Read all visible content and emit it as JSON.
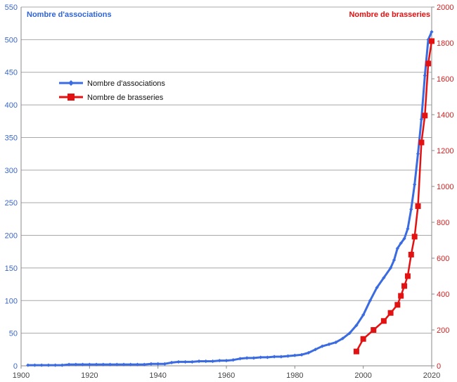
{
  "chart_data": {
    "type": "line",
    "title": "",
    "xlabel": "",
    "xlim": [
      1900,
      2020
    ],
    "x_ticks": [
      "1900",
      "1920",
      "1940",
      "1960",
      "1980",
      "2000",
      "2020"
    ],
    "y_left": {
      "label": "Nombre d'associations",
      "ylim": [
        0,
        550
      ],
      "ticks": [
        "0",
        "50",
        "100",
        "150",
        "200",
        "250",
        "300",
        "350",
        "400",
        "450",
        "500",
        "550"
      ]
    },
    "y_right": {
      "label": "Nombre de brasseries",
      "ylim": [
        0,
        2000
      ],
      "ticks": [
        "0",
        "200",
        "400",
        "600",
        "800",
        "1000",
        "1200",
        "1400",
        "1600",
        "1800",
        "2000"
      ]
    },
    "grid": "horizontal",
    "legend_position": "upper-left",
    "series": [
      {
        "name": "Nombre d'associations",
        "axis": "left",
        "color": "#3b6be0",
        "marker": "diamond",
        "x": [
          1902,
          1904,
          1906,
          1908,
          1910,
          1912,
          1914,
          1916,
          1918,
          1920,
          1922,
          1924,
          1926,
          1928,
          1930,
          1932,
          1934,
          1936,
          1938,
          1940,
          1942,
          1944,
          1946,
          1948,
          1950,
          1952,
          1954,
          1956,
          1958,
          1960,
          1962,
          1964,
          1966,
          1968,
          1970,
          1972,
          1974,
          1976,
          1978,
          1980,
          1982,
          1984,
          1986,
          1988,
          1990,
          1992,
          1994,
          1996,
          1998,
          2000,
          2002,
          2004,
          2006,
          2008,
          2009,
          2010,
          2011,
          2012,
          2013,
          2014,
          2015,
          2016,
          2017,
          2018,
          2019,
          2020
        ],
        "y": [
          1,
          1,
          1,
          1,
          1,
          1,
          2,
          2,
          2,
          2,
          2,
          2,
          2,
          2,
          2,
          2,
          2,
          2,
          3,
          3,
          3,
          5,
          6,
          6,
          6,
          7,
          7,
          7,
          8,
          8,
          9,
          11,
          12,
          12,
          13,
          13,
          14,
          14,
          15,
          16,
          17,
          20,
          25,
          30,
          33,
          36,
          42,
          50,
          62,
          78,
          100,
          120,
          135,
          150,
          162,
          180,
          188,
          195,
          210,
          240,
          278,
          325,
          378,
          445,
          500,
          512
        ]
      },
      {
        "name": "Nombre de brasseries",
        "axis": "right",
        "color": "#e21212",
        "marker": "square",
        "x": [
          1998,
          2000,
          2003,
          2006,
          2008,
          2010,
          2011,
          2012,
          2013,
          2014,
          2015,
          2016,
          2017,
          2018,
          2019,
          2020
        ],
        "y": [
          80,
          150,
          200,
          250,
          295,
          340,
          390,
          445,
          500,
          620,
          720,
          890,
          1245,
          1395,
          1685,
          1810
        ]
      }
    ]
  }
}
